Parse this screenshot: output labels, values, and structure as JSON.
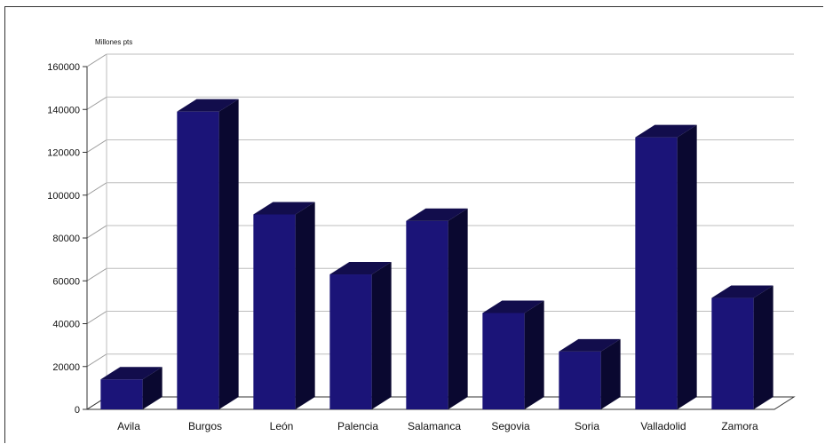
{
  "chart_data": {
    "type": "bar",
    "style": "3d",
    "title": "",
    "xlabel": "",
    "ylabel": "Millones pts",
    "categories": [
      "Avila",
      "Burgos",
      "León",
      "Palencia",
      "Salamanca",
      "Segovia",
      "Soria",
      "Valladolid",
      "Zamora"
    ],
    "values": [
      14000,
      139000,
      91000,
      63000,
      88000,
      45000,
      27000,
      127000,
      52000
    ],
    "ylim": [
      0,
      160000
    ],
    "yticks": [
      0,
      20000,
      40000,
      60000,
      80000,
      100000,
      120000,
      140000,
      160000
    ],
    "grid": true,
    "legend": "none",
    "colors": {
      "bar_front": "#1b1478",
      "bar_side": "#0a0830",
      "bar_top": "#120d4c"
    }
  }
}
